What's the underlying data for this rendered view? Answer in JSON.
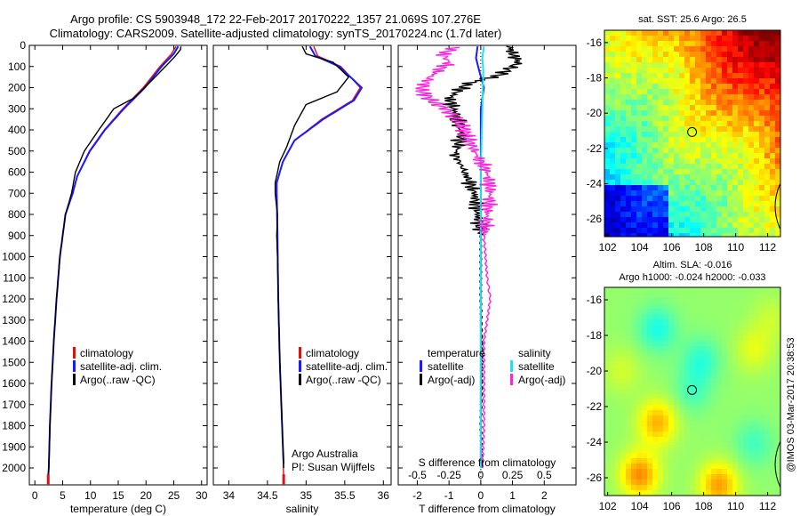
{
  "title_line1": "Argo profile: CS 5903948_172 22-Feb-2017 20170222_1357 21.069S 107.276E",
  "title_line2": "Climatology: CARS2009. Satellite-adjusted climatology: synTS_20170224.nc (1.7d later)",
  "credit": "@IMOS 03-Mar-2017 20:38:53",
  "colors": {
    "clim": "#dd1111",
    "sat": "#1a1aff",
    "argo": "#000000",
    "cyan": "#22e0f0",
    "magenta": "#ff22dd"
  },
  "chart_data": [
    {
      "type": "line",
      "xlabel": "temperature (deg C)",
      "xlim": [
        -1,
        31
      ],
      "xticks": [
        0,
        5,
        10,
        15,
        20,
        25,
        30
      ],
      "ylim": [
        2080,
        0
      ],
      "yticks": [
        0,
        100,
        200,
        300,
        400,
        500,
        600,
        700,
        800,
        900,
        1000,
        1100,
        1200,
        1300,
        1400,
        1500,
        1600,
        1700,
        1800,
        1900,
        2000
      ],
      "legend": [
        "climatology",
        "satellite-adj. clim.",
        "Argo(..raw -QC)"
      ],
      "series": [
        {
          "name": "climatology",
          "color": "clim",
          "points": [
            [
              25.4,
              5
            ],
            [
              24.6,
              40
            ],
            [
              22.5,
              100
            ],
            [
              19.5,
              200
            ],
            [
              15.8,
              300
            ],
            [
              12.5,
              400
            ],
            [
              9.8,
              500
            ],
            [
              7.6,
              620
            ],
            [
              6.8,
              700
            ],
            [
              5.5,
              800
            ],
            [
              4.5,
              1000
            ],
            [
              3.9,
              1200
            ],
            [
              3.4,
              1400
            ],
            [
              3.0,
              1600
            ],
            [
              2.7,
              1800
            ],
            [
              2.5,
              2000
            ],
            [
              2.4,
              2060
            ]
          ]
        },
        {
          "name": "satellite-adj. clim.",
          "color": "sat",
          "points": [
            [
              25.8,
              5
            ],
            [
              25.0,
              40
            ],
            [
              22.8,
              100
            ],
            [
              19.8,
              200
            ],
            [
              16.0,
              300
            ],
            [
              12.6,
              400
            ],
            [
              9.9,
              500
            ],
            [
              7.6,
              620
            ],
            [
              6.8,
              700
            ],
            [
              5.5,
              800
            ],
            [
              4.5,
              1000
            ],
            [
              3.9,
              1200
            ],
            [
              3.4,
              1400
            ],
            [
              3.0,
              1600
            ],
            [
              2.7,
              1800
            ],
            [
              2.5,
              2000
            ],
            [
              2.4,
              2040
            ]
          ]
        },
        {
          "name": "Argo(..raw -QC)",
          "color": "argo",
          "points": [
            [
              26.3,
              5
            ],
            [
              26.2,
              20
            ],
            [
              25.3,
              50
            ],
            [
              23.5,
              100
            ],
            [
              20.5,
              180
            ],
            [
              17.8,
              250
            ],
            [
              14.2,
              300
            ],
            [
              11.5,
              400
            ],
            [
              8.9,
              500
            ],
            [
              7.3,
              600
            ],
            [
              6.6,
              700
            ],
            [
              5.5,
              800
            ],
            [
              4.5,
              1000
            ],
            [
              3.9,
              1200
            ],
            [
              3.4,
              1400
            ],
            [
              3.0,
              1600
            ],
            [
              2.7,
              1800
            ],
            [
              2.5,
              2000
            ],
            [
              2.4,
              2030
            ]
          ]
        }
      ]
    },
    {
      "type": "line",
      "xlabel": "salinity",
      "xlim": [
        33.8,
        36.1
      ],
      "xticks": [
        34,
        34.5,
        35,
        35.5,
        36
      ],
      "ylim": [
        2080,
        0
      ],
      "legend": [
        "climatology",
        "satellite-adj. clim.",
        "Argo(..raw -QC)"
      ],
      "annotation": [
        "Argo Australia",
        "PI: Susan Wijffels"
      ],
      "series": [
        {
          "name": "climatology",
          "color": "clim",
          "points": [
            [
              35.1,
              5
            ],
            [
              35.15,
              50
            ],
            [
              35.45,
              100
            ],
            [
              35.7,
              200
            ],
            [
              35.6,
              260
            ],
            [
              35.2,
              350
            ],
            [
              34.85,
              450
            ],
            [
              34.7,
              550
            ],
            [
              34.62,
              650
            ],
            [
              34.62,
              700
            ],
            [
              34.63,
              900
            ],
            [
              34.64,
              1200
            ],
            [
              34.66,
              1500
            ],
            [
              34.68,
              1700
            ],
            [
              34.7,
              1900
            ],
            [
              34.71,
              2060
            ]
          ]
        },
        {
          "name": "satellite-adj. clim.",
          "color": "sat",
          "points": [
            [
              35.05,
              5
            ],
            [
              35.12,
              50
            ],
            [
              35.43,
              100
            ],
            [
              35.72,
              200
            ],
            [
              35.62,
              260
            ],
            [
              35.22,
              350
            ],
            [
              34.85,
              450
            ],
            [
              34.7,
              550
            ],
            [
              34.62,
              650
            ],
            [
              34.62,
              700
            ],
            [
              34.63,
              900
            ],
            [
              34.64,
              1200
            ],
            [
              34.66,
              1500
            ],
            [
              34.68,
              1700
            ],
            [
              34.7,
              1900
            ],
            [
              34.71,
              1980
            ]
          ]
        },
        {
          "name": "Argo(..raw -QC)",
          "color": "argo",
          "points": [
            [
              34.95,
              5
            ],
            [
              35.0,
              40
            ],
            [
              35.35,
              80
            ],
            [
              35.55,
              150
            ],
            [
              35.4,
              220
            ],
            [
              35.0,
              280
            ],
            [
              34.85,
              380
            ],
            [
              34.75,
              480
            ],
            [
              34.66,
              550
            ],
            [
              34.6,
              650
            ],
            [
              34.6,
              700
            ],
            [
              34.63,
              800
            ],
            [
              34.62,
              900
            ],
            [
              34.63,
              1000
            ],
            [
              34.64,
              1200
            ],
            [
              34.66,
              1500
            ],
            [
              34.68,
              1700
            ],
            [
              34.7,
              1900
            ],
            [
              34.71,
              2000
            ]
          ]
        }
      ]
    },
    {
      "type": "line",
      "xlabel": "T difference from climatology",
      "x2label": "S difference from climatology",
      "xlim": [
        -2.6,
        3.0
      ],
      "xticks": [
        -2,
        -1,
        0,
        1,
        2
      ],
      "x2ticks": [
        -0.5,
        -0.25,
        0,
        0.25,
        0.5
      ],
      "x2tick_labels": [
        "-0.5",
        "-0.25",
        "0",
        "0.25",
        "0.5"
      ],
      "ylim": [
        2080,
        0
      ],
      "legend_temperature": [
        "temperature",
        "satellite",
        "Argo(-adj)"
      ],
      "legend_salinity": [
        "salinity",
        "satellite",
        "Argo(-adj)"
      ],
      "series": [
        {
          "name": "satellite",
          "color": "sat",
          "points": [
            [
              -0.1,
              5
            ],
            [
              -0.15,
              60
            ],
            [
              -0.05,
              120
            ],
            [
              0.1,
              200
            ],
            [
              0.0,
              300
            ],
            [
              0.0,
              500
            ],
            [
              0.0,
              800
            ],
            [
              0.0,
              1200
            ],
            [
              0.0,
              2000
            ]
          ]
        },
        {
          "name": "Argo(-adj)",
          "color": "argo",
          "points": [
            [
              0.9,
              5
            ],
            [
              1.0,
              40
            ],
            [
              1.2,
              80
            ],
            [
              0.6,
              140
            ],
            [
              -0.4,
              180
            ],
            [
              -1.0,
              250
            ],
            [
              -0.8,
              320
            ],
            [
              -0.6,
              420
            ],
            [
              -0.8,
              520
            ],
            [
              -0.5,
              600
            ],
            [
              -0.2,
              700
            ],
            [
              -0.1,
              800
            ],
            [
              0.0,
              900
            ],
            [
              0.0,
              1200
            ],
            [
              0.05,
              1500
            ],
            [
              0.0,
              1800
            ],
            [
              0.05,
              2000
            ]
          ]
        },
        {
          "name": "satellite",
          "color": "cyan",
          "points": [
            [
              0.1,
              5
            ],
            [
              0.05,
              60
            ],
            [
              0.08,
              120
            ],
            [
              0.05,
              300
            ],
            [
              0.0,
              600
            ],
            [
              0.0,
              1000
            ],
            [
              0.0,
              2000
            ]
          ]
        },
        {
          "name": "Argo(-adj)",
          "color": "magenta",
          "points": [
            [
              -0.8,
              10
            ],
            [
              -1.2,
              40
            ],
            [
              -1.0,
              80
            ],
            [
              -1.6,
              150
            ],
            [
              -1.9,
              210
            ],
            [
              -1.5,
              270
            ],
            [
              -1.1,
              300
            ],
            [
              -0.6,
              380
            ],
            [
              -0.2,
              500
            ],
            [
              0.2,
              600
            ],
            [
              0.3,
              700
            ],
            [
              0.2,
              800
            ],
            [
              0.1,
              900
            ],
            [
              0.2,
              1100
            ],
            [
              0.3,
              1200
            ],
            [
              0.1,
              1400
            ],
            [
              0.1,
              1600
            ],
            [
              0.1,
              1800
            ],
            [
              0.05,
              2000
            ]
          ]
        }
      ]
    },
    {
      "type": "heatmap",
      "title": "sat. SST: 25.6  Argo: 26.5",
      "xlim": [
        101.8,
        112.8
      ],
      "ylim": [
        -27,
        -15.3
      ],
      "xticks": [
        102,
        104,
        106,
        108,
        110,
        112
      ],
      "yticks": [
        -16,
        -18,
        -20,
        -22,
        -24,
        -26
      ],
      "colormap": "jet",
      "marker": [
        107.276,
        -21.069
      ]
    },
    {
      "type": "heatmap",
      "title_line1": "Altim. SLA: -0.016",
      "title_line2": "Argo h1000: -0.024  h2000: -0.033",
      "xlim": [
        101.8,
        112.8
      ],
      "ylim": [
        -27,
        -15.3
      ],
      "xticks": [
        102,
        104,
        106,
        108,
        110,
        112
      ],
      "yticks": [
        -16,
        -18,
        -20,
        -22,
        -24,
        -26
      ],
      "colormap": "jet",
      "marker": [
        107.276,
        -21.069
      ]
    }
  ]
}
